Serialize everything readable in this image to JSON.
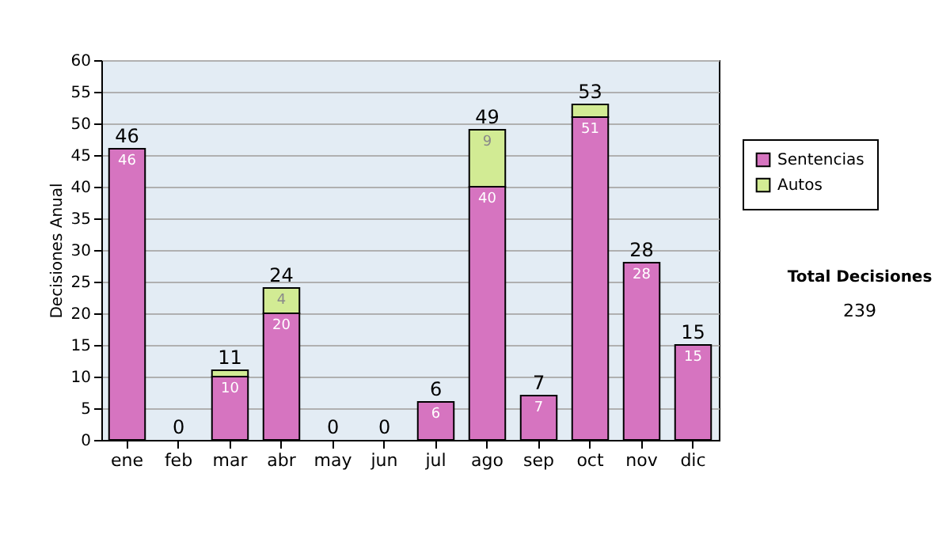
{
  "chart_data": {
    "type": "bar",
    "ylabel": "Decisiones Anual",
    "categories": [
      "ene",
      "feb",
      "mar",
      "abr",
      "may",
      "jun",
      "jul",
      "ago",
      "sep",
      "oct",
      "nov",
      "dic"
    ],
    "series": [
      {
        "name": "Sentencias",
        "color": "#d674c0",
        "values": [
          46,
          0,
          10,
          20,
          0,
          0,
          6,
          40,
          7,
          51,
          28,
          15
        ],
        "value_labels": [
          "46",
          null,
          "10",
          "20",
          null,
          null,
          "6",
          "40",
          "7",
          "51",
          "28",
          "15"
        ]
      },
      {
        "name": "Autos",
        "color": "#d2eb94",
        "values": [
          0,
          0,
          1,
          4,
          0,
          0,
          0,
          9,
          0,
          2,
          0,
          0
        ],
        "value_labels": [
          null,
          null,
          null,
          "4",
          null,
          null,
          null,
          "9",
          null,
          null,
          null,
          null
        ]
      }
    ],
    "stacked": true,
    "totals": [
      "46",
      "0",
      "11",
      "24",
      "0",
      "0",
      "6",
      "49",
      "7",
      "53",
      "28",
      "15"
    ],
    "ylim": [
      0,
      60
    ],
    "yticks": [
      0,
      5,
      10,
      15,
      20,
      25,
      30,
      35,
      40,
      45,
      50,
      55,
      60
    ],
    "grid": "y",
    "legend": "right",
    "annotations": [
      "Total Decisiones",
      "239"
    ]
  }
}
